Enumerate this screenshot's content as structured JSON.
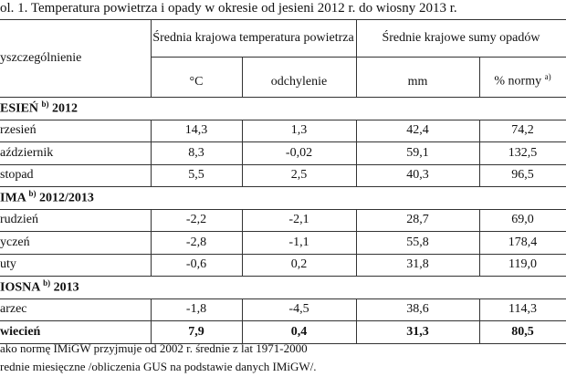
{
  "caption": "ol. 1.  Temperatura powietrza i opady w okresie od jesieni 2012 r. do wiosny 2013 r.",
  "table": {
    "header": {
      "label": "yszczególnienie",
      "temp_group": "Średnia krajowa temperatura powietrza",
      "precip_group": "Średnie krajowe sumy opadów",
      "temp_c": "°C",
      "deviation": "odchylenie",
      "mm": "mm",
      "norm": "% normy",
      "norm_note": "a)"
    },
    "sections": [
      {
        "name": "ESIEŃ",
        "note": "b)",
        "period": "2012",
        "rows": [
          [
            "rzesień",
            "14,3",
            "1,3",
            "42,4",
            "74,2"
          ],
          [
            "aździernik",
            "8,3",
            "-0,02",
            "59,1",
            "132,5"
          ],
          [
            "stopad",
            "5,5",
            "2,5",
            "40,3",
            "96,5"
          ]
        ]
      },
      {
        "name": "IMA",
        "note": "b)",
        "period": "2012/2013",
        "rows": [
          [
            "rudzień",
            "-2,2",
            "-2,1",
            "28,7",
            "69,0"
          ],
          [
            "yczeń",
            "-2,8",
            "-1,1",
            "55,8",
            "178,4"
          ],
          [
            "uty",
            "-0,6",
            "0,2",
            "31,8",
            "119,0"
          ]
        ]
      },
      {
        "name": "IOSNA",
        "note": "b)",
        "period": "2013",
        "rows": [
          [
            "arzec",
            "-1,8",
            "-4,5",
            "38,6",
            "114,3"
          ],
          [
            "wiecień",
            "7,9",
            "0,4",
            "31,3",
            "80,5"
          ]
        ]
      }
    ]
  },
  "footnotes": [
    "ako normę IMiGW przyjmuje od 2002 r. średnie z lat 1971-2000",
    "rednie miesięczne /obliczenia GUS na podstawie danych IMiGW/."
  ]
}
